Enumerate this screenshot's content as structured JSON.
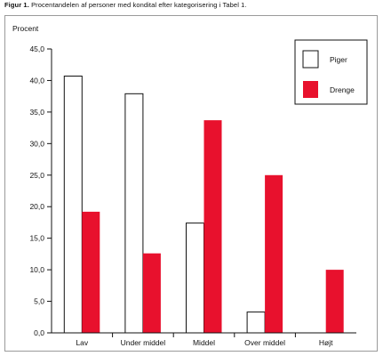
{
  "figure": {
    "label": "Figur 1.",
    "caption": "Procentandelen af personer med kondital efter kategorisering i Tabel 1."
  },
  "chart_data": {
    "type": "bar",
    "title": "",
    "xlabel": "",
    "ylabel": "Procent",
    "categories": [
      "Lav",
      "Under middel",
      "Middel",
      "Over middel",
      "Højt"
    ],
    "series": [
      {
        "name": "Piger",
        "values": [
          40.7,
          37.9,
          17.4,
          3.3,
          0.0
        ],
        "color": "#ffffff"
      },
      {
        "name": "Drenge",
        "values": [
          19.2,
          12.6,
          33.7,
          25.0,
          10.0
        ],
        "color": "#e8112d"
      }
    ],
    "ylim": [
      0,
      45
    ],
    "yticks": [
      "0,0",
      "5,0",
      "10,0",
      "15,0",
      "20,0",
      "25,0",
      "30,0",
      "35,0",
      "40,0",
      "45,0"
    ],
    "grid": false,
    "legend": "top-right"
  }
}
